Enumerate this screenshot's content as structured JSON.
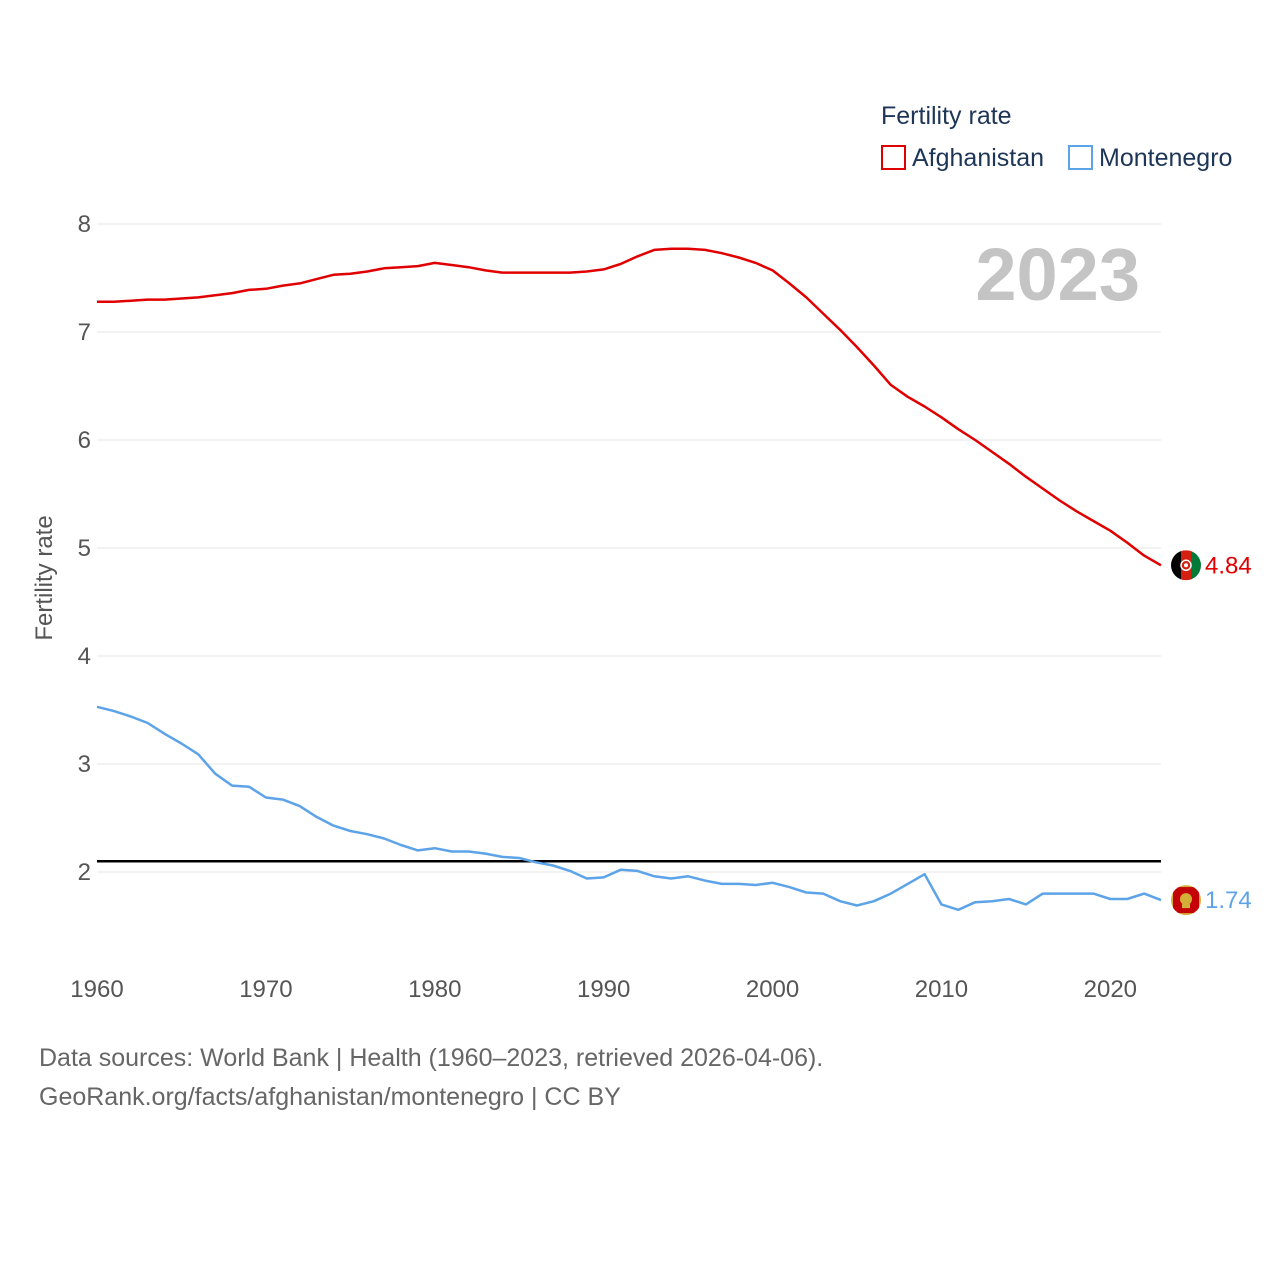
{
  "chart_data": {
    "type": "line",
    "title": "",
    "legend_title": "Fertility rate",
    "ylabel": "Fertility rate",
    "xlabel": "",
    "year_label": "2023",
    "xlim": [
      1960,
      2023
    ],
    "ylim": [
      1.0,
      8.2
    ],
    "x_ticks": [
      1960,
      1970,
      1980,
      1990,
      2000,
      2010,
      2020
    ],
    "x_tick_labels": [
      "1960",
      "1970",
      "1980",
      "1990",
      "2000",
      "2010",
      "2020"
    ],
    "y_ticks": [
      2,
      3,
      4,
      5,
      6,
      7,
      8
    ],
    "y_tick_labels": [
      "2",
      "3",
      "4",
      "5",
      "6",
      "7",
      "8"
    ],
    "reference_line": {
      "value": 2.1
    },
    "grid": true,
    "legend_position": "top-right",
    "x": [
      1960,
      1961,
      1962,
      1963,
      1964,
      1965,
      1966,
      1967,
      1968,
      1969,
      1970,
      1971,
      1972,
      1973,
      1974,
      1975,
      1976,
      1977,
      1978,
      1979,
      1980,
      1981,
      1982,
      1983,
      1984,
      1985,
      1986,
      1987,
      1988,
      1989,
      1990,
      1991,
      1992,
      1993,
      1994,
      1995,
      1996,
      1997,
      1998,
      1999,
      2000,
      2001,
      2002,
      2003,
      2004,
      2005,
      2006,
      2007,
      2008,
      2009,
      2010,
      2011,
      2012,
      2013,
      2014,
      2015,
      2016,
      2017,
      2018,
      2019,
      2020,
      2021,
      2022,
      2023
    ],
    "series": [
      {
        "name": "Afghanistan",
        "color": "#e00000",
        "end_label": "4.84",
        "values": [
          7.28,
          7.28,
          7.29,
          7.3,
          7.3,
          7.31,
          7.32,
          7.34,
          7.36,
          7.39,
          7.4,
          7.43,
          7.45,
          7.49,
          7.53,
          7.54,
          7.56,
          7.59,
          7.6,
          7.61,
          7.64,
          7.62,
          7.6,
          7.57,
          7.55,
          7.55,
          7.55,
          7.55,
          7.55,
          7.56,
          7.58,
          7.63,
          7.7,
          7.76,
          7.77,
          7.77,
          7.76,
          7.73,
          7.69,
          7.64,
          7.57,
          7.45,
          7.32,
          7.17,
          7.02,
          6.86,
          6.69,
          6.51,
          6.4,
          6.31,
          6.21,
          6.1,
          6.0,
          5.89,
          5.78,
          5.66,
          5.55,
          5.44,
          5.34,
          5.25,
          5.16,
          5.05,
          4.93,
          4.84
        ]
      },
      {
        "name": "Montenegro",
        "color": "#5da3e8",
        "end_label": "1.74",
        "values": [
          3.53,
          3.49,
          3.44,
          3.38,
          3.28,
          3.19,
          3.09,
          2.91,
          2.8,
          2.79,
          2.69,
          2.67,
          2.61,
          2.51,
          2.43,
          2.38,
          2.35,
          2.31,
          2.25,
          2.2,
          2.22,
          2.19,
          2.19,
          2.17,
          2.14,
          2.13,
          2.09,
          2.06,
          2.01,
          1.94,
          1.95,
          2.02,
          2.01,
          1.96,
          1.94,
          1.96,
          1.92,
          1.89,
          1.89,
          1.88,
          1.9,
          1.86,
          1.81,
          1.8,
          1.73,
          1.69,
          1.73,
          1.8,
          1.89,
          1.98,
          1.7,
          1.65,
          1.72,
          1.73,
          1.75,
          1.7,
          1.8,
          1.8,
          1.8,
          1.8,
          1.75,
          1.75,
          1.8,
          1.74
        ]
      }
    ]
  },
  "footer": {
    "line1": "Data sources: World Bank | Health (1960–2023, retrieved 2026-04-06).",
    "line2": "GeoRank.org/facts/afghanistan/montenegro | CC BY"
  }
}
